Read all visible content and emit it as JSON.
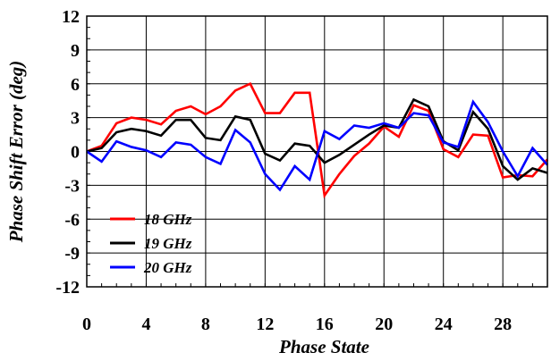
{
  "chart_data": {
    "type": "line",
    "title": "",
    "xlabel": "Phase State",
    "ylabel": "Phase Shift Error (deg)",
    "xlim": [
      0,
      31
    ],
    "ylim": [
      -12,
      12
    ],
    "xticks": [
      0,
      4,
      8,
      12,
      16,
      20,
      24,
      28
    ],
    "yticks": [
      12,
      9,
      6,
      3,
      0,
      -3,
      -6,
      -9,
      -12
    ],
    "x": [
      0,
      1,
      2,
      3,
      4,
      5,
      6,
      7,
      8,
      9,
      10,
      11,
      12,
      13,
      14,
      15,
      16,
      17,
      18,
      19,
      20,
      21,
      22,
      23,
      24,
      25,
      26,
      27,
      28,
      29,
      30,
      31
    ],
    "grid": true,
    "legend_position": "bottom-left",
    "series": [
      {
        "name": "18 GHz",
        "color": "#ff0000",
        "values": [
          0,
          0.5,
          2.5,
          3.0,
          2.8,
          2.4,
          3.6,
          4.0,
          3.3,
          4.0,
          5.4,
          6.0,
          3.4,
          3.4,
          5.2,
          5.2,
          -3.9,
          -2.0,
          -0.4,
          0.7,
          2.2,
          1.3,
          4.1,
          3.6,
          0.2,
          -0.5,
          1.5,
          1.4,
          -2.3,
          -2.1,
          -2.2,
          -0.7
        ]
      },
      {
        "name": "19 GHz",
        "color": "#000000",
        "values": [
          0,
          0.3,
          1.7,
          2.0,
          1.8,
          1.4,
          2.8,
          2.8,
          1.2,
          1.0,
          3.1,
          2.8,
          -0.2,
          -0.8,
          0.7,
          0.5,
          -1.0,
          -0.3,
          0.6,
          1.5,
          2.3,
          2.1,
          4.6,
          4.0,
          0.9,
          0.1,
          3.5,
          2.0,
          -1.3,
          -2.5,
          -1.5,
          -1.9
        ]
      },
      {
        "name": "20 GHz",
        "color": "#0000ff",
        "values": [
          0,
          -0.9,
          0.9,
          0.4,
          0.1,
          -0.5,
          0.8,
          0.6,
          -0.5,
          -1.1,
          1.9,
          0.8,
          -2.0,
          -3.4,
          -1.3,
          -2.5,
          1.8,
          1.1,
          2.3,
          2.1,
          2.5,
          2.1,
          3.4,
          3.2,
          0.8,
          0.4,
          4.4,
          2.6,
          0.0,
          -2.2,
          0.3,
          -1.2
        ]
      }
    ]
  }
}
